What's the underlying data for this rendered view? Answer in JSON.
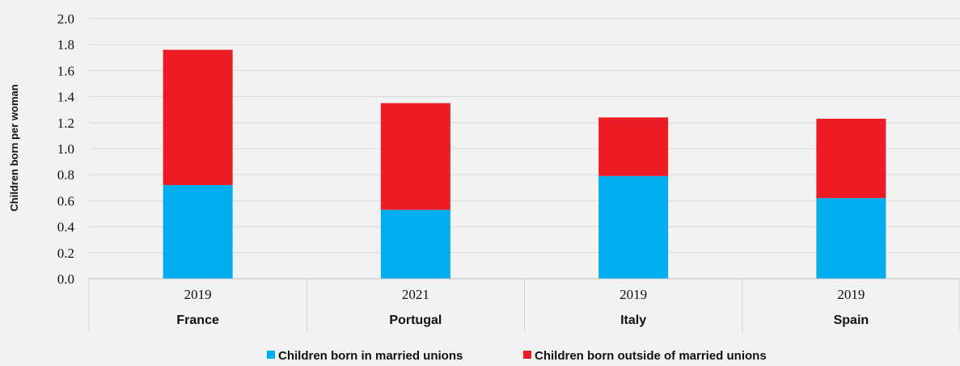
{
  "chart_data": {
    "type": "bar",
    "stacked": true,
    "categories": [
      "France",
      "Portugal",
      "Italy",
      "Spain"
    ],
    "years": [
      "2019",
      "2021",
      "2019",
      "2019"
    ],
    "series": [
      {
        "name": "Children born in married unions",
        "color": "#00aeef",
        "values": [
          0.72,
          0.53,
          0.79,
          0.62
        ]
      },
      {
        "name": "Children born outside of married unions",
        "color": "#ed1c24",
        "values": [
          1.04,
          0.82,
          0.45,
          0.61
        ]
      }
    ],
    "ylabel": "Children born per woman",
    "ylim": [
      0,
      2.0
    ],
    "yticks": [
      "0.0",
      "0.2",
      "0.4",
      "0.6",
      "0.8",
      "1.0",
      "1.2",
      "1.4",
      "1.6",
      "1.8",
      "2.0"
    ],
    "grid": true,
    "legend": "bottom"
  }
}
